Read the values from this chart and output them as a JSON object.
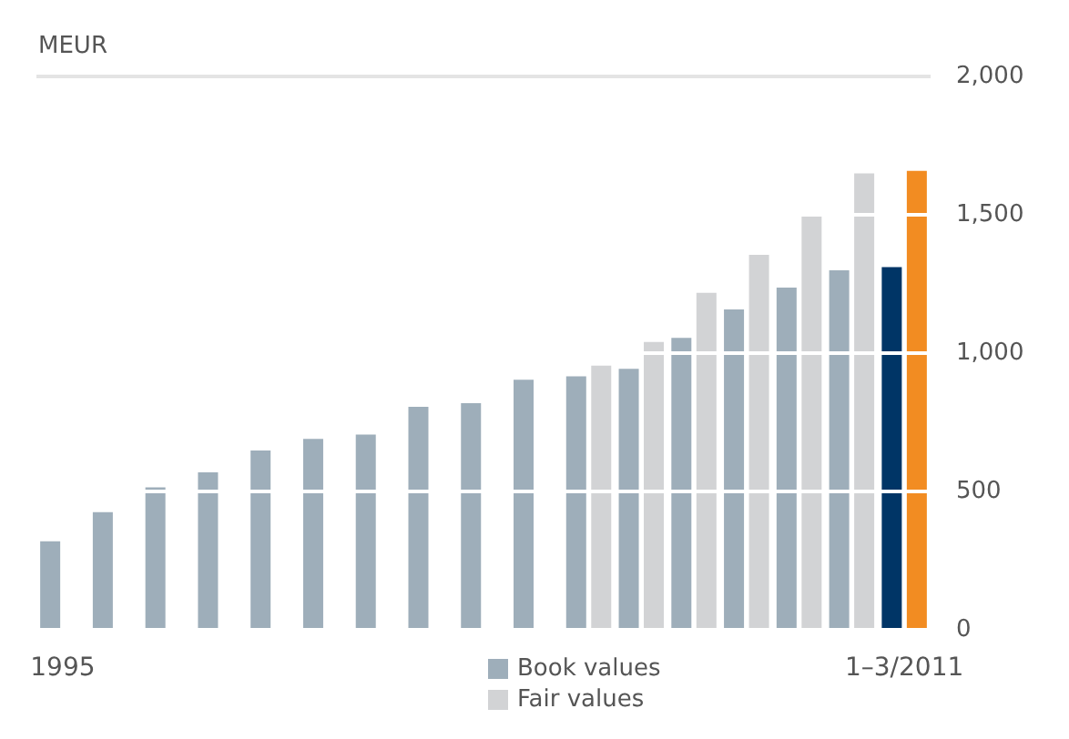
{
  "chart_data": {
    "type": "bar",
    "ylabel": "MEUR",
    "categories": [
      "1995",
      null,
      null,
      null,
      null,
      null,
      null,
      null,
      null,
      null,
      null,
      null,
      null,
      null,
      null,
      null,
      "1–3/2011"
    ],
    "series": [
      {
        "name": "Book values",
        "color": "#9eaeba",
        "colors": [
          "#9eaeba",
          "#9eaeba",
          "#9eaeba",
          "#9eaeba",
          "#9eaeba",
          "#9eaeba",
          "#9eaeba",
          "#9eaeba",
          "#9eaeba",
          "#9eaeba",
          "#9eaeba",
          "#9eaeba",
          "#9eaeba",
          "#9eaeba",
          "#9eaeba",
          "#9eaeba",
          "#003566"
        ],
        "values": [
          320,
          425,
          515,
          569,
          648,
          690,
          706,
          806,
          819,
          904,
          916,
          943,
          1055,
          1158,
          1237,
          1299,
          1311
        ]
      },
      {
        "name": "Fair values",
        "color": "#d2d3d5",
        "colors": [
          "#d2d3d5",
          "#d2d3d5",
          "#d2d3d5",
          "#d2d3d5",
          "#d2d3d5",
          "#d2d3d5",
          "#d2d3d5",
          "#d2d3d5",
          "#d2d3d5",
          "#d2d3d5",
          "#d2d3d5",
          "#d2d3d5",
          "#d2d3d5",
          "#d2d3d5",
          "#d2d3d5",
          "#d2d3d5",
          "#f28c22"
        ],
        "values": [
          null,
          null,
          null,
          null,
          null,
          null,
          null,
          null,
          null,
          null,
          955,
          1040,
          1218,
          1355,
          1497,
          1650,
          1659
        ]
      }
    ],
    "ylim": [
      0,
      2000
    ],
    "yticks": [
      0,
      500,
      {
        "value": 1000,
        "label": "1,000"
      },
      {
        "value": 1500,
        "label": "1,500"
      },
      {
        "value": 2000,
        "label": "2,000"
      }
    ],
    "grid": "y",
    "legend": "bottom"
  }
}
